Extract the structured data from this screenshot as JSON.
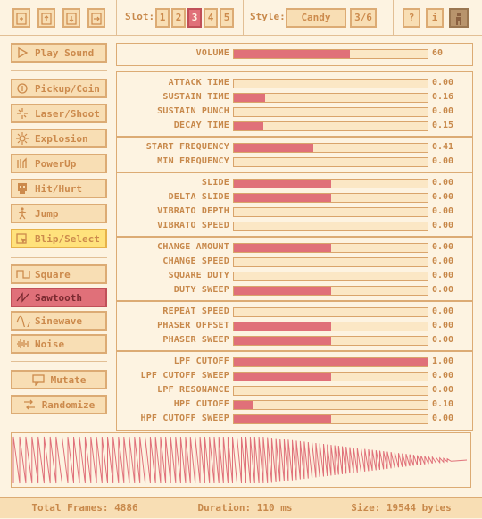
{
  "toolbar": {
    "slot_label": "Slot:",
    "slots": [
      "1",
      "2",
      "3",
      "4",
      "5"
    ],
    "active_slot": "3",
    "style_label": "Style:",
    "style_value": "Candy",
    "style_index": "3/6",
    "help_label": "?",
    "info_label": "i"
  },
  "sidebar": {
    "play": "Play Sound",
    "presets": [
      "Pickup/Coin",
      "Laser/Shoot",
      "Explosion",
      "PowerUp",
      "Hit/Hurt",
      "Jump",
      "Blip/Select"
    ],
    "active_preset": "Blip/Select",
    "waves": [
      "Square",
      "Sawtooth",
      "Sinewave",
      "Noise"
    ],
    "active_wave": "Sawtooth",
    "mutate": "Mutate",
    "randomize": "Randomize"
  },
  "volume": {
    "label": "VOLUME",
    "value": "60",
    "level": 0.6
  },
  "groups": [
    [
      {
        "label": "ATTACK TIME",
        "value": "0.00",
        "level": 0.0
      },
      {
        "label": "SUSTAIN TIME",
        "value": "0.16",
        "level": 0.16
      },
      {
        "label": "SUSTAIN PUNCH",
        "value": "0.00",
        "level": 0.0
      },
      {
        "label": "DECAY TIME",
        "value": "0.15",
        "level": 0.15
      }
    ],
    [
      {
        "label": "START FREQUENCY",
        "value": "0.41",
        "level": 0.41
      },
      {
        "label": "MIN FREQUENCY",
        "value": "0.00",
        "level": 0.0
      }
    ],
    [
      {
        "label": "SLIDE",
        "value": "0.00",
        "level": 0.5
      },
      {
        "label": "DELTA SLIDE",
        "value": "0.00",
        "level": 0.5
      },
      {
        "label": "VIBRATO DEPTH",
        "value": "0.00",
        "level": 0.0
      },
      {
        "label": "VIBRATO SPEED",
        "value": "0.00",
        "level": 0.0
      }
    ],
    [
      {
        "label": "CHANGE AMOUNT",
        "value": "0.00",
        "level": 0.5
      },
      {
        "label": "CHANGE SPEED",
        "value": "0.00",
        "level": 0.0
      },
      {
        "label": "SQUARE DUTY",
        "value": "0.00",
        "level": 0.0
      },
      {
        "label": "DUTY SWEEP",
        "value": "0.00",
        "level": 0.5
      }
    ],
    [
      {
        "label": "REPEAT SPEED",
        "value": "0.00",
        "level": 0.0
      },
      {
        "label": "PHASER OFFSET",
        "value": "0.00",
        "level": 0.5
      },
      {
        "label": "PHASER SWEEP",
        "value": "0.00",
        "level": 0.5
      }
    ],
    [
      {
        "label": "LPF CUTOFF",
        "value": "1.00",
        "level": 1.0
      },
      {
        "label": "LPF CUTOFF SWEEP",
        "value": "0.00",
        "level": 0.5
      },
      {
        "label": "LPF RESONANCE",
        "value": "0.00",
        "level": 0.0
      },
      {
        "label": "HPF CUTOFF",
        "value": "0.10",
        "level": 0.1
      },
      {
        "label": "HPF CUTOFF SWEEP",
        "value": "0.00",
        "level": 0.5
      }
    ]
  ],
  "footer": {
    "frames": "Total Frames: 4886",
    "duration": "Duration: 110 ms",
    "size": "Size: 19544 bytes"
  },
  "colors": {
    "accent": "#e07079",
    "highlight": "#ffe27c",
    "border": "#dcab74",
    "bg": "#fdf3e1"
  }
}
